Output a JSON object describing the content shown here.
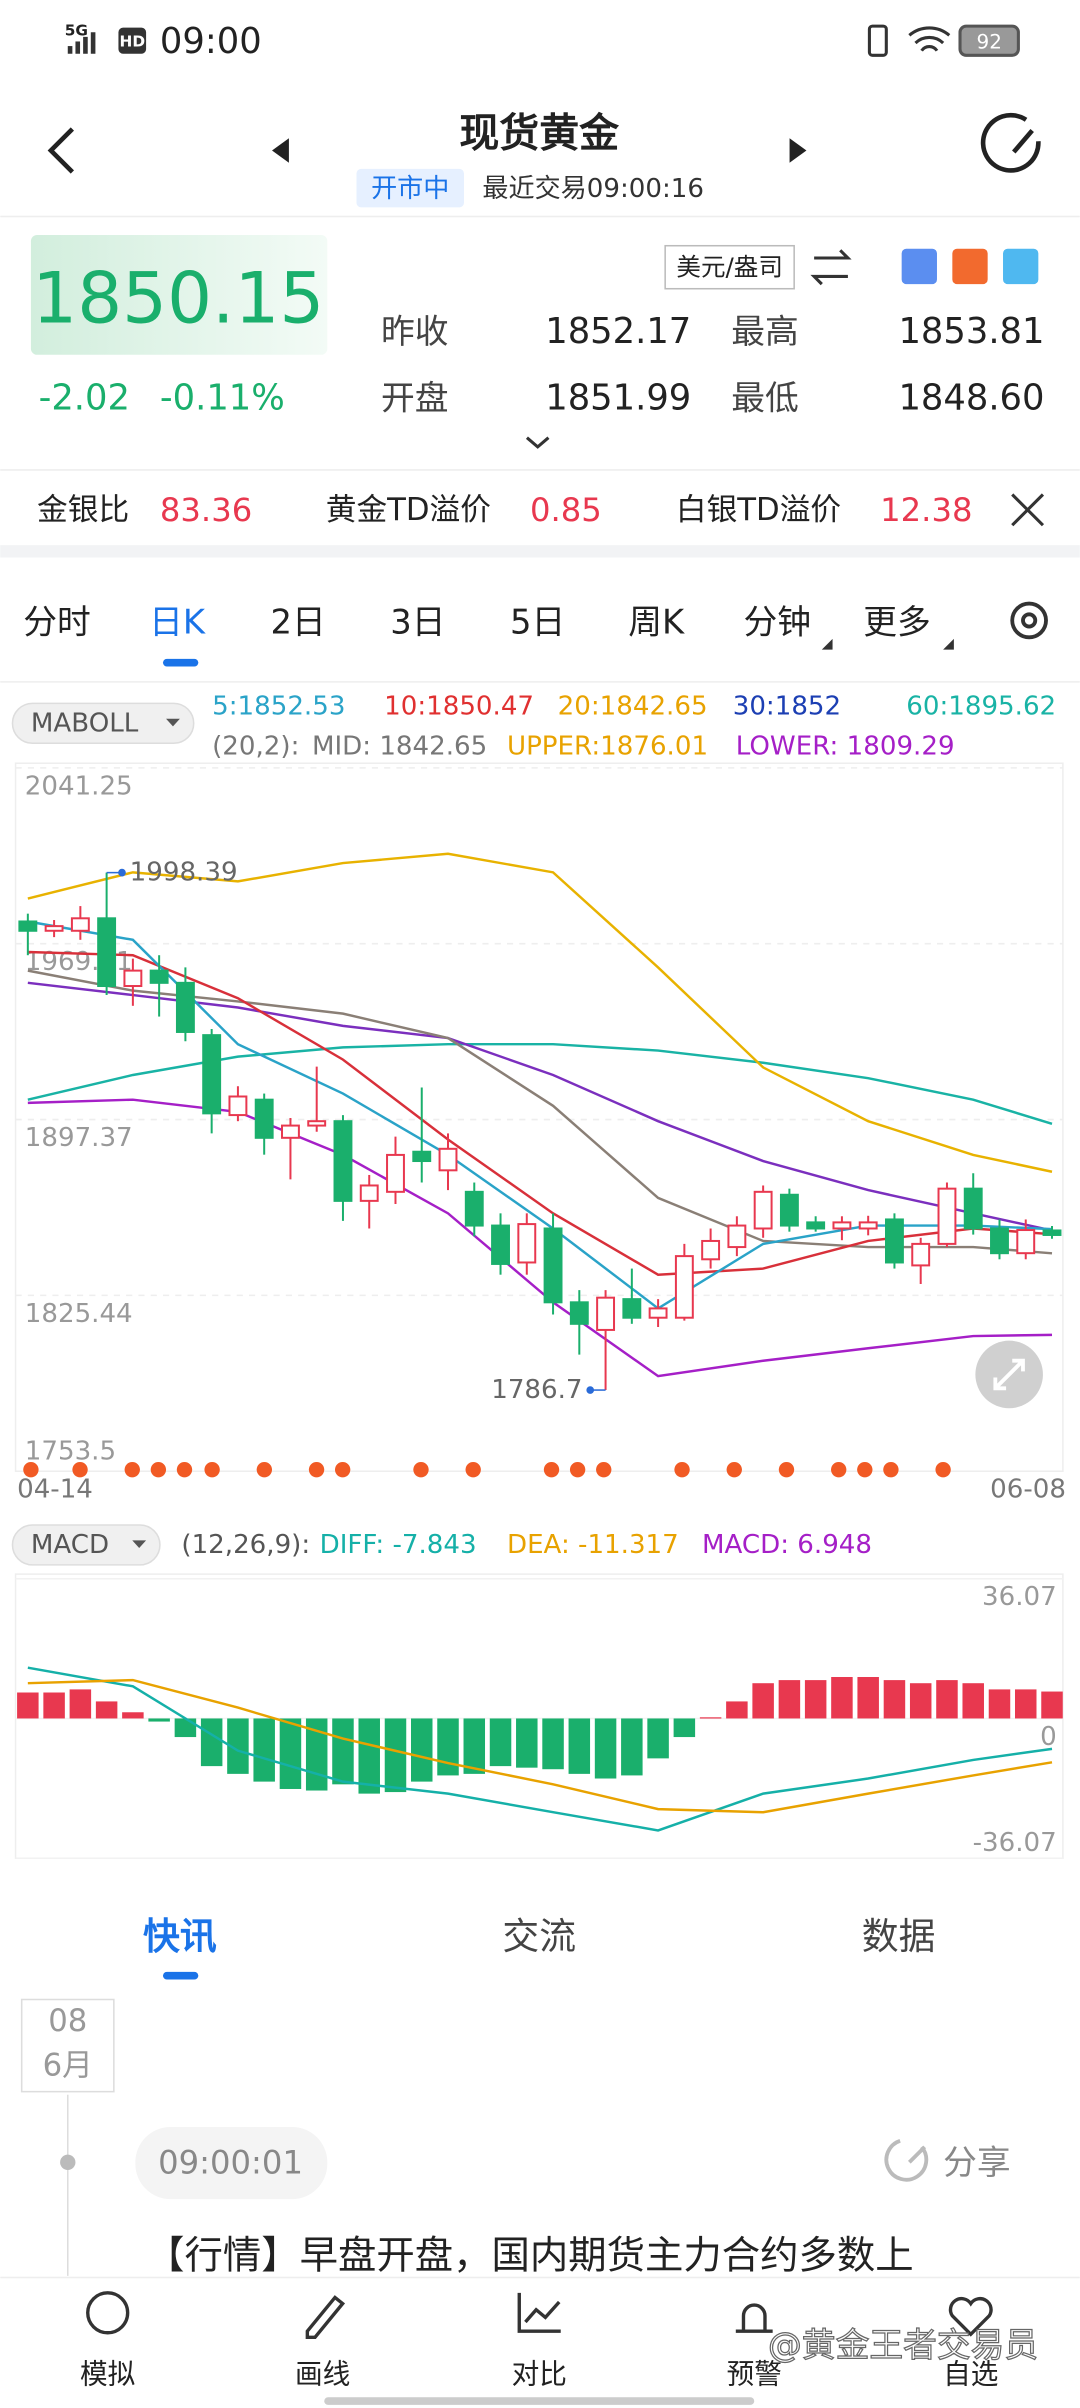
{
  "status_bar": {
    "network": "5G",
    "hd": "HD",
    "time": "09:00",
    "battery": "92"
  },
  "header": {
    "title": "现货黄金",
    "status": "开市中",
    "last_trade": "最近交易09:00:16"
  },
  "quote": {
    "price": "1850.15",
    "change": "-2.02",
    "change_pct": "-0.11%",
    "unit": "美元/盎司",
    "stats": [
      {
        "label": "昨收",
        "value": "1852.17"
      },
      {
        "label": "最高",
        "value": "1853.81"
      },
      {
        "label": "开盘",
        "value": "1851.99"
      },
      {
        "label": "最低",
        "value": "1848.60"
      }
    ]
  },
  "ratios": [
    {
      "label": "金银比",
      "value": "83.36"
    },
    {
      "label": "黄金TD溢价",
      "value": "0.85"
    },
    {
      "label": "白银TD溢价",
      "value": "12.38"
    }
  ],
  "tabs": [
    "分时",
    "日K",
    "2日",
    "3日",
    "5日",
    "周K",
    "分钟",
    "更多"
  ],
  "chart_data": [
    {
      "type": "candlestick",
      "indicator": "MABOLL",
      "legend": [
        "5:1852.53",
        "10:1850.47",
        "20:1842.65",
        "30:1852",
        "60:1895.62"
      ],
      "boll_legend": [
        "(20,2):",
        "MID: 1842.65",
        "UPPER:1876.01",
        "LOWER: 1809.29"
      ],
      "x_labels": [
        "04-14",
        "06-08"
      ],
      "ylim": [
        1753.5,
        2041.25
      ],
      "yticks": [
        2041.25,
        1969.31,
        1897.37,
        1825.44,
        1753.5
      ],
      "high_label": 1998.39,
      "low_label": 1786.7,
      "up_color": "#e8384f",
      "down_color": "#1aaf6c",
      "candles": [
        [
          1978.4,
          1981.6,
          1964.6,
          1974.6
        ],
        [
          1974.6,
          1979.0,
          1972.0,
          1976.5
        ],
        [
          1974.6,
          1984.7,
          1970.9,
          1979.7
        ],
        [
          1979.7,
          1998.39,
          1948.3,
          1952.0
        ],
        [
          1952.0,
          1963.2,
          1943.9,
          1958.3
        ],
        [
          1958.3,
          1964.6,
          1939.5,
          1953.3
        ],
        [
          1953.3,
          1959.6,
          1929.4,
          1933.2
        ],
        [
          1931.9,
          1934.4,
          1891.7,
          1899.9
        ],
        [
          1899.2,
          1911.0,
          1896.7,
          1906.8
        ],
        [
          1905.5,
          1908.0,
          1883.0,
          1889.9
        ],
        [
          1889.9,
          1898.0,
          1872.9,
          1894.9
        ],
        [
          1894.9,
          1919.0,
          1892.4,
          1896.7
        ],
        [
          1896.7,
          1899.2,
          1855.9,
          1864.1
        ],
        [
          1864.1,
          1874.7,
          1852.8,
          1870.4
        ],
        [
          1867.8,
          1890.4,
          1862.8,
          1882.9
        ],
        [
          1884.2,
          1910.5,
          1871.6,
          1880.4
        ],
        [
          1876.6,
          1891.7,
          1868.5,
          1885.4
        ],
        [
          1867.8,
          1871.6,
          1849.6,
          1854.0
        ],
        [
          1854.0,
          1859.0,
          1833.9,
          1838.3
        ],
        [
          1838.9,
          1859.0,
          1833.9,
          1854.6
        ],
        [
          1852.8,
          1859.0,
          1817.6,
          1822.6
        ],
        [
          1822.6,
          1827.6,
          1801.2,
          1813.8
        ],
        [
          1811.3,
          1827.6,
          1786.7,
          1824.5
        ],
        [
          1823.9,
          1836.4,
          1813.8,
          1816.3
        ],
        [
          1816.3,
          1823.9,
          1812.5,
          1820.1
        ],
        [
          1816.3,
          1846.5,
          1815.1,
          1841.5
        ],
        [
          1840.2,
          1852.8,
          1836.4,
          1847.7
        ],
        [
          1845.2,
          1857.8,
          1841.5,
          1854.0
        ],
        [
          1852.8,
          1870.4,
          1849.0,
          1867.8
        ],
        [
          1866.6,
          1869.1,
          1851.5,
          1854.0
        ],
        [
          1855.3,
          1857.8,
          1851.5,
          1852.8
        ],
        [
          1852.8,
          1857.8,
          1848.0,
          1855.3
        ],
        [
          1852.8,
          1858.0,
          1850.0,
          1855.3
        ],
        [
          1856.5,
          1859.0,
          1836.4,
          1838.9
        ],
        [
          1837.7,
          1849.0,
          1830.1,
          1846.5
        ],
        [
          1846.5,
          1871.6,
          1845.2,
          1869.1
        ],
        [
          1869.1,
          1875.4,
          1850.3,
          1852.8
        ],
        [
          1852.8,
          1856.5,
          1840.2,
          1842.7
        ],
        [
          1842.7,
          1856.5,
          1840.2,
          1852.17
        ],
        [
          1851.99,
          1853.81,
          1848.6,
          1850.15
        ]
      ],
      "line_x": [
        0,
        4,
        8,
        12,
        16,
        20,
        24,
        28,
        32,
        36,
        39
      ],
      "lines": [
        {
          "color": "#19b3a5",
          "values": [
            1905.5,
            1915.6,
            1923.1,
            1926.9,
            1928.2,
            1928.2,
            1925.6,
            1920.6,
            1914.3,
            1905.5,
            1895.62
          ]
        },
        {
          "color": "#e8b200",
          "values": [
            1987.8,
            1998.5,
            1994.8,
            2002.3,
            2006.1,
            1998.5,
            1959.6,
            1918.7,
            1896.7,
            1882.9,
            1876.01
          ]
        },
        {
          "color": "#a51fc7",
          "values": [
            1904.2,
            1905.5,
            1900.5,
            1882.9,
            1859.0,
            1822.6,
            1792.4,
            1798.7,
            1803.8,
            1808.8,
            1809.29
          ]
        },
        {
          "color": "#7b2fbe",
          "values": [
            1953.3,
            1948.3,
            1943.2,
            1935.7,
            1930.7,
            1915.6,
            1896.7,
            1880.4,
            1868.5,
            1859.0,
            1852
          ]
        },
        {
          "color": "#8a7f76",
          "values": [
            1958.3,
            1950.1,
            1945.7,
            1940.7,
            1930.7,
            1903.0,
            1865.3,
            1847.7,
            1845.2,
            1845.2,
            1842.65
          ]
        },
        {
          "color": "#d8303a",
          "values": [
            1965.9,
            1964.6,
            1947.0,
            1921.9,
            1889.2,
            1859.0,
            1833.9,
            1836.4,
            1847.7,
            1852.8,
            1850.47
          ]
        },
        {
          "color": "#2aa3c8",
          "values": [
            1978.4,
            1970.9,
            1928.2,
            1908.0,
            1882.9,
            1852.8,
            1820.1,
            1846.5,
            1854.0,
            1854.0,
            1852.53
          ]
        }
      ]
    },
    {
      "type": "macd",
      "indicator": "MACD",
      "legend": [
        "(12,26,9):",
        "DIFF: -7.843",
        "DEA: -11.317",
        "MACD: 6.948"
      ],
      "ylim": [
        -36.07,
        36.07
      ],
      "yticks": [
        36.07,
        0,
        -36.07
      ],
      "up_color": "#e8384f",
      "down_color": "#1aaf6c",
      "values": [
        6.7,
        6.7,
        7.5,
        4.4,
        1.6,
        -0.8,
        -4.8,
        -12.3,
        -14.3,
        -16.3,
        -18.2,
        -18.6,
        -17.0,
        -19.4,
        -19.0,
        -16.3,
        -14.7,
        -14.3,
        -12.3,
        -12.7,
        -13.1,
        -14.3,
        -15.5,
        -14.7,
        -10.3,
        -4.8,
        0.3,
        4.4,
        9.1,
        9.9,
        9.9,
        10.7,
        10.7,
        9.9,
        9.1,
        9.9,
        9.1,
        7.5,
        7.5,
        6.948
      ],
      "line_x": [
        0,
        4,
        8,
        12,
        16,
        20,
        24,
        28,
        32,
        36,
        39
      ],
      "lines": [
        {
          "color": "#15b0a8",
          "values": [
            13.1,
            8.3,
            -8.3,
            -16.3,
            -19.4,
            -24.2,
            -28.9,
            -19.4,
            -15.5,
            -10.7,
            -7.843
          ]
        },
        {
          "color": "#e8a200",
          "values": [
            9.1,
            9.9,
            2.8,
            -5.2,
            -11.5,
            -17.0,
            -23.4,
            -24.2,
            -19.4,
            -14.7,
            -11.317
          ]
        }
      ]
    }
  ],
  "news_tabs": [
    "快讯",
    "交流",
    "数据"
  ],
  "news": {
    "day": "08",
    "month": "6月",
    "time": "09:00:01",
    "share": "分享",
    "text": "【行情】早盘开盘，国内期货主力合约多数上"
  },
  "nav": [
    "模拟",
    "画线",
    "对比",
    "预警",
    "自选"
  ],
  "watermark": "@黄金王者交易员"
}
